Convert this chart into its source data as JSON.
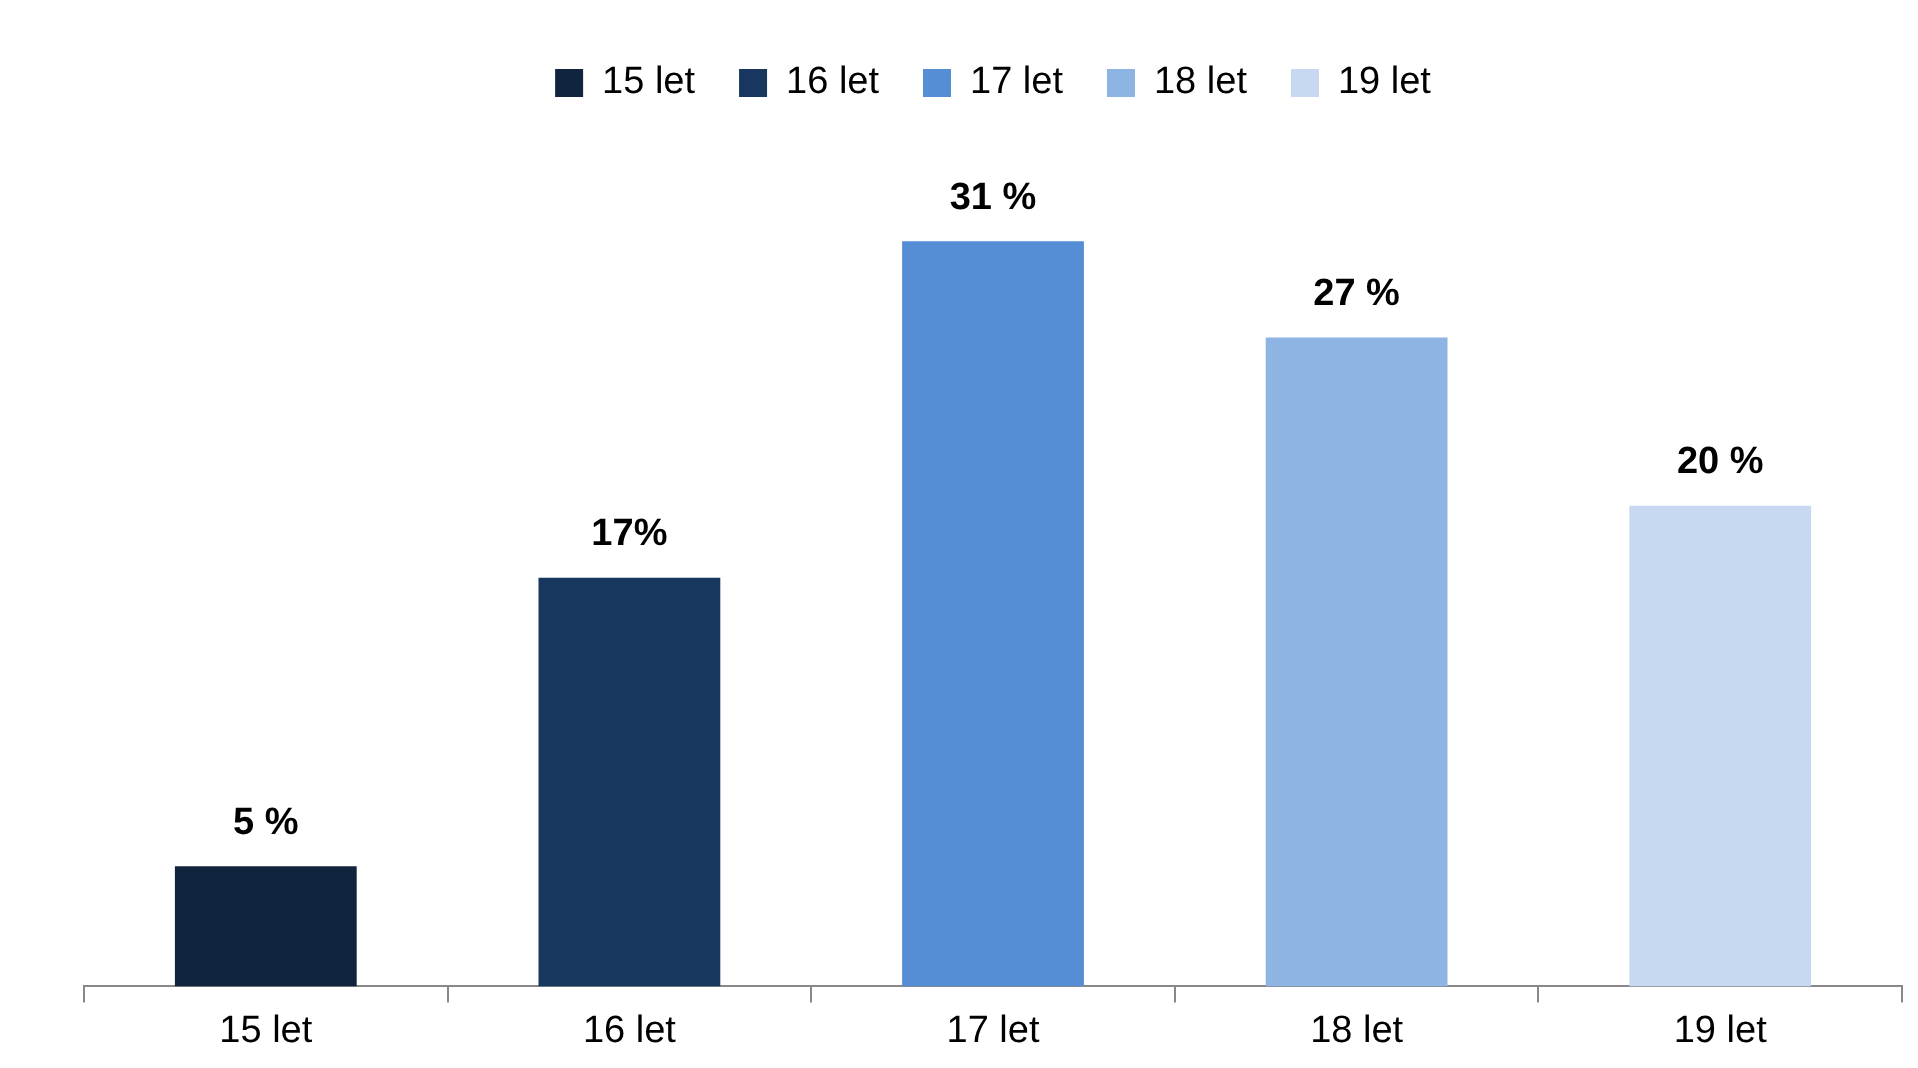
{
  "chart_data": {
    "type": "bar",
    "categories": [
      "15 let",
      "16 let",
      "17 let",
      "18 let",
      "19 let"
    ],
    "series": [
      {
        "name": "15 let",
        "color": "#10243e",
        "values": [
          5,
          null,
          null,
          null,
          null
        ],
        "value_labels": [
          "5 %",
          null,
          null,
          null,
          null
        ]
      },
      {
        "name": "16 let",
        "color": "#17375e",
        "values": [
          null,
          17,
          null,
          null,
          null
        ],
        "value_labels": [
          null,
          "17%",
          null,
          null,
          null
        ]
      },
      {
        "name": "17 let",
        "color": "#558ed5",
        "values": [
          null,
          null,
          31,
          null,
          null
        ],
        "value_labels": [
          null,
          null,
          "31 %",
          null,
          null
        ]
      },
      {
        "name": "18 let",
        "color": "#8eb4e3",
        "values": [
          null,
          null,
          null,
          27,
          null
        ],
        "value_labels": [
          null,
          null,
          null,
          "27 %",
          null
        ]
      },
      {
        "name": "19 let",
        "color": "#c6d9f1",
        "values": [
          null,
          null,
          null,
          null,
          20
        ],
        "value_labels": [
          null,
          null,
          null,
          null,
          "20 %"
        ]
      }
    ],
    "legend": "top",
    "grid": false
  }
}
